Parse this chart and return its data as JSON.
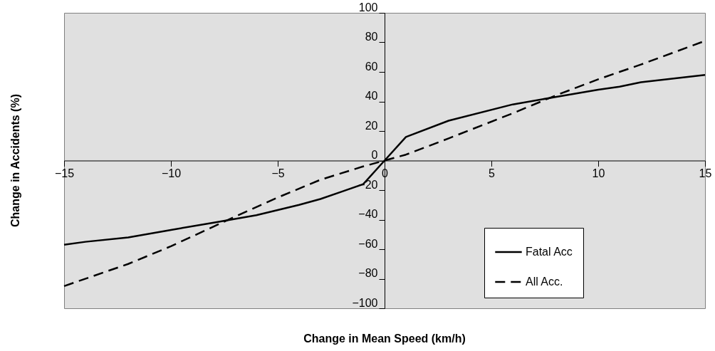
{
  "chart_data": {
    "type": "line",
    "xlabel": "Change in Mean Speed (km/h)",
    "ylabel": "Change in Accidents (%)",
    "xlim": [
      -15,
      15
    ],
    "ylim": [
      -100,
      100
    ],
    "xticks": [
      -15,
      -10,
      -5,
      0,
      5,
      10,
      15
    ],
    "yticks": [
      -100,
      -80,
      -60,
      -40,
      -20,
      0,
      20,
      40,
      60,
      80,
      100
    ],
    "grid": false,
    "legend": "bottom right",
    "marker": "none",
    "series": [
      {
        "name": "Fatal Acc",
        "color": "#000000",
        "line_style": "solid",
        "x": [
          -15,
          -14,
          -12,
          -10,
          -8,
          -6,
          -4,
          -3,
          -2,
          -1,
          0,
          1,
          3,
          6,
          8,
          10,
          11,
          12,
          15
        ],
        "values": [
          -57,
          -55,
          -52,
          -47,
          -42,
          -37,
          -30,
          -26,
          -21,
          -16,
          0,
          16,
          27,
          38,
          43,
          48,
          50,
          53,
          58
        ]
      },
      {
        "name": "All Acc.",
        "color": "#000000",
        "line_style": "dashed",
        "x": [
          -15,
          -12,
          -10,
          -7,
          -5,
          -3,
          -1,
          0,
          1,
          3,
          6,
          8,
          10,
          12,
          15
        ],
        "values": [
          -85,
          -70,
          -58,
          -38,
          -25,
          -13,
          -4,
          0,
          4,
          15,
          32,
          44,
          55,
          65,
          81
        ]
      }
    ]
  }
}
